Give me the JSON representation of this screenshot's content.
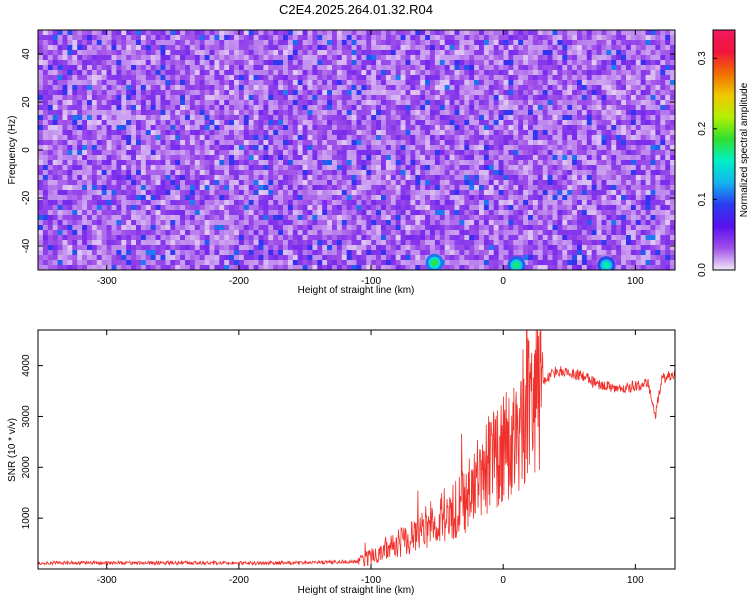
{
  "page": {
    "title": "C2E4.2025.264.01.32.R04"
  },
  "chart_data": [
    {
      "type": "heatmap",
      "title": "C2E4.2025.264.01.32.R04",
      "xlabel": "Height of straight line (km)",
      "ylabel": "Frequency (Hz)",
      "xlim": [
        -352,
        130
      ],
      "ylim": [
        -50,
        50
      ],
      "x_ticks": [
        -300,
        -200,
        -100,
        0,
        100
      ],
      "y_ticks": [
        -40,
        -20,
        0,
        20,
        40
      ],
      "colorbar": {
        "label": "Normalized spectral amplitude",
        "range": [
          0.0,
          0.34
        ],
        "ticks": [
          0.0,
          0.1,
          0.2,
          0.3
        ],
        "colors": [
          "#f2e8f8",
          "#a050e8",
          "#5a10f0",
          "#2a3cf0",
          "#14b4f0",
          "#00f0c8",
          "#30e030",
          "#b4f000",
          "#f0c800",
          "#f06e00",
          "#f0143c",
          "#f01a60"
        ]
      },
      "description_values": {
        "background_amplitude": 0.04,
        "speckle_amplitude": 0.08,
        "hotspots": [
          {
            "x": -52,
            "y": -47,
            "value": 0.18
          },
          {
            "x": 10,
            "y": -48,
            "value": 0.17
          },
          {
            "x": 78,
            "y": -48,
            "value": 0.16
          }
        ]
      }
    },
    {
      "type": "line",
      "xlabel": "Height of straight line (km)",
      "ylabel": "SNR (10 * v/v)",
      "xlim": [
        -352,
        130
      ],
      "ylim": [
        0,
        4700
      ],
      "x_ticks": [
        -300,
        -200,
        -100,
        0,
        100
      ],
      "y_ticks": [
        1000,
        2000,
        3000,
        4000
      ],
      "series": [
        {
          "color": "#f0302a",
          "x": [
            -352,
            -300,
            -250,
            -200,
            -150,
            -110,
            -100,
            -90,
            -80,
            -70,
            -60,
            -50,
            -40,
            -30,
            -20,
            -10,
            0,
            10,
            20,
            30,
            40,
            50,
            60,
            70,
            80,
            90,
            100,
            110,
            115,
            120,
            130
          ],
          "y": [
            120,
            120,
            120,
            115,
            120,
            150,
            230,
            400,
            500,
            600,
            800,
            1000,
            1100,
            1300,
            1700,
            2100,
            2300,
            2600,
            3300,
            3700,
            3900,
            3850,
            3800,
            3650,
            3600,
            3550,
            3600,
            3650,
            3000,
            3750,
            3850
          ]
        }
      ]
    }
  ]
}
